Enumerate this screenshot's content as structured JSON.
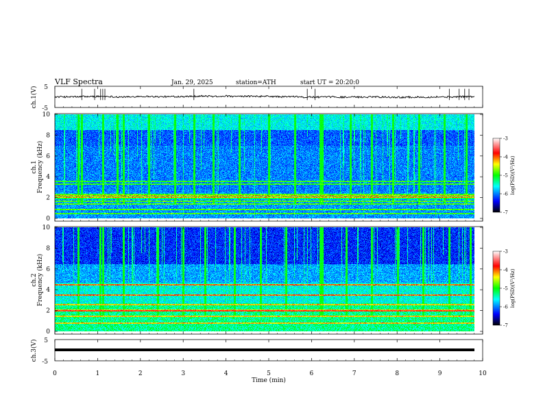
{
  "header": {
    "title": "VLF  Spectra",
    "date": "Jan. 29, 2025",
    "station": "station=ATH",
    "start": "start  UT  =   20:20:0"
  },
  "chart_data": [
    {
      "type": "line",
      "panel": "ch1-waveform",
      "ylabel": "ch.1(V)",
      "ylim": [
        -5,
        5
      ],
      "yticks": [
        "5",
        "-5"
      ],
      "xlim": [
        0,
        9.8
      ],
      "baseline": 0,
      "noise_amplitude": 0.4,
      "spike_times_min": [
        0.63,
        0.93,
        1.07,
        1.12,
        1.17,
        3.25,
        5.9,
        6.08,
        9.22,
        9.45,
        9.58,
        9.68
      ]
    },
    {
      "type": "heatmap",
      "panel": "ch1-spectrogram",
      "ylabel_outer": "ch.1",
      "ylabel": "Frequency  (kHz)",
      "ylim": [
        0,
        10
      ],
      "yticks": [
        "0",
        "2",
        "4",
        "6",
        "8",
        "10"
      ],
      "xlim": [
        0,
        9.8
      ],
      "colorbar": {
        "label": "log(PSD)(V²/Hz)",
        "ticks": [
          "-3",
          "-4",
          "-5",
          "-6",
          "-7"
        ],
        "range": [
          -7,
          -3
        ]
      },
      "narrowband_lines_khz": [
        0.5,
        0.9,
        1.4,
        1.7,
        2.1,
        2.3,
        3.3,
        3.6
      ],
      "sferic_times_min": [
        0.55,
        0.62,
        1.12,
        1.45,
        1.6,
        2.2,
        2.8,
        3.25,
        3.7,
        4.3,
        5.0,
        5.6,
        6.2,
        6.25,
        6.9,
        7.4,
        7.9,
        8.5,
        9.1,
        9.6
      ]
    },
    {
      "type": "heatmap",
      "panel": "ch2-spectrogram",
      "ylabel_outer": "ch.2",
      "ylabel": "Frequency  (kHz)",
      "ylim": [
        0,
        10
      ],
      "yticks": [
        "0",
        "2",
        "4",
        "6",
        "8",
        "10"
      ],
      "xlim": [
        0,
        9.8
      ],
      "colorbar": {
        "label": "log(PSD)(V²/Hz)",
        "ticks": [
          "-3",
          "-4",
          "-5",
          "-6",
          "-7"
        ],
        "range": [
          -7,
          -3
        ]
      },
      "narrowband_lines_khz": [
        0.8,
        1.5,
        2.0,
        2.1,
        2.6,
        3.5,
        4.5
      ],
      "sferic_times_min": [
        0.55,
        1.05,
        1.12,
        1.6,
        2.4,
        3.0,
        3.5,
        4.2,
        4.8,
        5.4,
        6.2,
        6.25,
        6.8,
        7.4,
        8.0,
        8.6,
        9.2,
        9.7
      ]
    },
    {
      "type": "line",
      "panel": "ch3-waveform",
      "ylabel": "ch.3(V)",
      "ylim": [
        -5,
        5
      ],
      "yticks": [
        "5",
        "-5"
      ],
      "xlim": [
        0,
        9.8
      ],
      "baseline": -0.5
    }
  ],
  "xaxis": {
    "label": "Time  (min)",
    "ticks": [
      "0",
      "1",
      "2",
      "3",
      "4",
      "5",
      "6",
      "7",
      "8",
      "9",
      "10"
    ]
  },
  "colors": {
    "cmap": [
      "#000000",
      "#0000ff",
      "#00ffff",
      "#00ff00",
      "#ffff00",
      "#ff0000",
      "#ffffff"
    ]
  }
}
